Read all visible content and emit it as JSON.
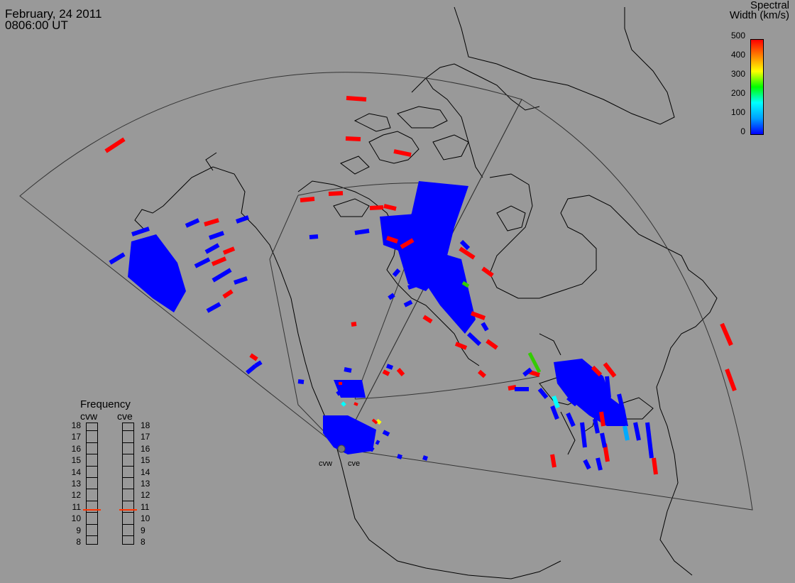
{
  "header": {
    "date": "February, 24 2011",
    "time": "0806:00 UT"
  },
  "colorbar": {
    "title_line1": "Spectral",
    "title_line2": "Width (km/s)",
    "ticks": [
      "500",
      "400",
      "300",
      "200",
      "100",
      "0"
    ],
    "gradient": [
      "#0000ff",
      "#00a0ff",
      "#00ffff",
      "#00ff00",
      "#ffff00",
      "#ff8000",
      "#ff0000"
    ]
  },
  "frequency_panel": {
    "title": "Frequency",
    "columns": [
      {
        "label": "cvw",
        "selected": 11,
        "marker_color": "#ff3300"
      },
      {
        "label": "cve",
        "selected": 11,
        "marker_color": "#ff3300"
      }
    ],
    "scale": [
      "18",
      "17",
      "16",
      "15",
      "14",
      "13",
      "12",
      "11",
      "10",
      "9",
      "8"
    ]
  },
  "sites": {
    "west": "cvw",
    "east": "cve"
  },
  "colors": {
    "background": "#999999",
    "red": "#ff0000",
    "blue": "#0000ff",
    "green": "#33cc00",
    "cyan": "#00ffff",
    "yellow": "#ffff00"
  }
}
